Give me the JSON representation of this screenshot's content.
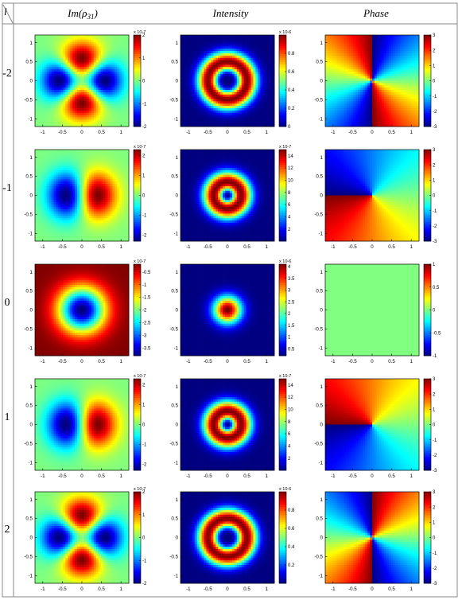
{
  "table": {
    "corner_label": "l",
    "columns": [
      {
        "key": "im",
        "prefix": "Im(",
        "symbol": "ρ",
        "subscript": "31",
        "suffix": ")"
      },
      {
        "key": "int",
        "label": "Intensity"
      },
      {
        "key": "ph",
        "label": "Phase"
      }
    ],
    "row_labels": [
      "-2",
      "-1",
      "0",
      "1",
      "2"
    ]
  },
  "chart_data": [
    {
      "type": "heatmap",
      "l": -2,
      "quantity": "Im(ρ31)",
      "xlim": [
        -1.2,
        1.2
      ],
      "ylim": [
        -1.2,
        1.2
      ],
      "xticks": [
        "-1",
        "-0.5",
        "0",
        "0.5",
        "1"
      ],
      "yticks": [
        "1",
        "0.5",
        "0",
        "-0.5",
        "-1"
      ],
      "colorbar": {
        "range": [
          -2,
          2
        ],
        "ticks": [
          "2",
          "1",
          "0",
          "-1",
          "-2"
        ],
        "exponent": "x 10-7"
      }
    },
    {
      "type": "heatmap",
      "l": -2,
      "quantity": "Intensity",
      "xlim": [
        -1.2,
        1.2
      ],
      "ylim": [
        -1.2,
        1.2
      ],
      "xticks": [
        "-1",
        "-0.5",
        "0",
        "0.5",
        "1"
      ],
      "yticks": [
        "1",
        "0.5",
        "0",
        "-0.5",
        "-1"
      ],
      "colorbar": {
        "range": [
          0,
          1
        ],
        "ticks": [
          "0.8",
          "0.6",
          "0.4",
          "0.2",
          "0"
        ],
        "exponent": "x 10-6"
      }
    },
    {
      "type": "heatmap",
      "l": -2,
      "quantity": "Phase",
      "xlim": [
        -1.2,
        1.2
      ],
      "ylim": [
        -1.2,
        1.2
      ],
      "xticks": [
        "-1",
        "-0.5",
        "0",
        "0.5",
        "1"
      ],
      "yticks": [
        "1",
        "0.5",
        "0",
        "-0.5",
        "-1"
      ],
      "colorbar": {
        "range": [
          -3,
          3
        ],
        "ticks": [
          "3",
          "2",
          "1",
          "0",
          "-1",
          "-2",
          "-3"
        ],
        "exponent": ""
      }
    },
    {
      "type": "heatmap",
      "l": -1,
      "quantity": "Im(ρ31)",
      "xlim": [
        -1.2,
        1.2
      ],
      "ylim": [
        -1.2,
        1.2
      ],
      "xticks": [
        "-1",
        "-0.5",
        "0",
        "0.5",
        "1"
      ],
      "yticks": [
        "1",
        "0.5",
        "0",
        "-0.5",
        "-1"
      ],
      "colorbar": {
        "range": [
          -2.3,
          2.3
        ],
        "ticks": [
          "2",
          "1",
          "0",
          "-1",
          "-2"
        ],
        "exponent": "x 10-7"
      }
    },
    {
      "type": "heatmap",
      "l": -1,
      "quantity": "Intensity",
      "xlim": [
        -1.2,
        1.2
      ],
      "ylim": [
        -1.2,
        1.2
      ],
      "xticks": [
        "-1",
        "-0.5",
        "0",
        "0.5",
        "1"
      ],
      "yticks": [
        "1",
        "0.5",
        "0",
        "-0.5",
        "-1"
      ],
      "colorbar": {
        "range": [
          0,
          15
        ],
        "ticks": [
          "14",
          "12",
          "10",
          "8",
          "6",
          "4",
          "2"
        ],
        "exponent": "x 10-7"
      }
    },
    {
      "type": "heatmap",
      "l": -1,
      "quantity": "Phase",
      "xlim": [
        -1.2,
        1.2
      ],
      "ylim": [
        -1.2,
        1.2
      ],
      "xticks": [
        "-1",
        "-0.5",
        "0",
        "0.5",
        "1"
      ],
      "yticks": [
        "1",
        "0.5",
        "0",
        "-0.5",
        "-1"
      ],
      "colorbar": {
        "range": [
          -3,
          3
        ],
        "ticks": [
          "3",
          "2",
          "1",
          "0",
          "-1",
          "-2",
          "-3"
        ],
        "exponent": ""
      }
    },
    {
      "type": "heatmap",
      "l": 0,
      "quantity": "Im(ρ31)",
      "xlim": [
        -1.2,
        1.2
      ],
      "ylim": [
        -1.2,
        1.2
      ],
      "xticks": [
        "-1",
        "-0.5",
        "0",
        "0.5",
        "1"
      ],
      "yticks": [
        "1",
        "0.5",
        "0",
        "-0.5",
        "-1"
      ],
      "colorbar": {
        "range": [
          -3.8,
          -0.2
        ],
        "ticks": [
          "-0.5",
          "-1",
          "-1.5",
          "-2",
          "-2.5",
          "-3",
          "-3.5"
        ],
        "exponent": "x 10-7"
      }
    },
    {
      "type": "heatmap",
      "l": 0,
      "quantity": "Intensity",
      "xlim": [
        -1.2,
        1.2
      ],
      "ylim": [
        -1.2,
        1.2
      ],
      "xticks": [
        "-1",
        "-0.5",
        "0",
        "0.5",
        "1"
      ],
      "yticks": [
        "1",
        "0.5",
        "0",
        "-0.5",
        "-1"
      ],
      "colorbar": {
        "range": [
          0.2,
          4.1
        ],
        "ticks": [
          "4",
          "3.5",
          "3",
          "2.5",
          "2",
          "1.5",
          "1",
          "0.5"
        ],
        "exponent": "x 10-6"
      }
    },
    {
      "type": "heatmap",
      "l": 0,
      "quantity": "Phase",
      "xlim": [
        -1.2,
        1.2
      ],
      "ylim": [
        -1.2,
        1.2
      ],
      "xticks": [
        "-1",
        "-0.5",
        "0",
        "0.5",
        "1"
      ],
      "yticks": [
        "1",
        "0.5",
        "0",
        "-0.5",
        "-1"
      ],
      "colorbar": {
        "range": [
          -1,
          1
        ],
        "ticks": [
          "1",
          "0.5",
          "0",
          "-0.5",
          "-1"
        ],
        "exponent": ""
      }
    },
    {
      "type": "heatmap",
      "l": 1,
      "quantity": "Im(ρ31)",
      "xlim": [
        -1.2,
        1.2
      ],
      "ylim": [
        -1.2,
        1.2
      ],
      "xticks": [
        "-1",
        "-0.5",
        "0",
        "0.5",
        "1"
      ],
      "yticks": [
        "1",
        "0.5",
        "0",
        "-0.5",
        "-1"
      ],
      "colorbar": {
        "range": [
          -2.3,
          2.3
        ],
        "ticks": [
          "2",
          "1",
          "0",
          "-1",
          "-2"
        ],
        "exponent": "x 10-7"
      }
    },
    {
      "type": "heatmap",
      "l": 1,
      "quantity": "Intensity",
      "xlim": [
        -1.2,
        1.2
      ],
      "ylim": [
        -1.2,
        1.2
      ],
      "xticks": [
        "-1",
        "-0.5",
        "0",
        "0.5",
        "1"
      ],
      "yticks": [
        "1",
        "0.5",
        "0",
        "-0.5",
        "-1"
      ],
      "colorbar": {
        "range": [
          0,
          15
        ],
        "ticks": [
          "14",
          "12",
          "10",
          "8",
          "6",
          "4",
          "2"
        ],
        "exponent": "x 10-7"
      }
    },
    {
      "type": "heatmap",
      "l": 1,
      "quantity": "Phase",
      "xlim": [
        -1.2,
        1.2
      ],
      "ylim": [
        -1.2,
        1.2
      ],
      "xticks": [
        "-1",
        "-0.5",
        "0",
        "0.5",
        "1"
      ],
      "yticks": [
        "1",
        "0.5",
        "0",
        "-0.5",
        "-1"
      ],
      "colorbar": {
        "range": [
          -3,
          3
        ],
        "ticks": [
          "3",
          "2",
          "1",
          "0",
          "-1",
          "-2",
          "-3"
        ],
        "exponent": ""
      }
    },
    {
      "type": "heatmap",
      "l": 2,
      "quantity": "Im(ρ31)",
      "xlim": [
        -1.2,
        1.2
      ],
      "ylim": [
        -1.2,
        1.2
      ],
      "xticks": [
        "-1",
        "-0.5",
        "0",
        "0.5",
        "1"
      ],
      "yticks": [
        "1",
        "0.5",
        "0",
        "-0.5",
        "-1"
      ],
      "colorbar": {
        "range": [
          -2,
          2
        ],
        "ticks": [
          "2",
          "1",
          "0",
          "-1",
          "-2"
        ],
        "exponent": "x 10-7"
      }
    },
    {
      "type": "heatmap",
      "l": 2,
      "quantity": "Intensity",
      "xlim": [
        -1.2,
        1.2
      ],
      "ylim": [
        -1.2,
        1.2
      ],
      "xticks": [
        "-1",
        "-0.5",
        "0",
        "0.5",
        "1"
      ],
      "yticks": [
        "1",
        "0.5",
        "0",
        "-0.5",
        "-1"
      ],
      "colorbar": {
        "range": [
          0,
          1
        ],
        "ticks": [
          "0.8",
          "0.6",
          "0.4",
          "0.2"
        ],
        "exponent": "x 10-6"
      }
    },
    {
      "type": "heatmap",
      "l": 2,
      "quantity": "Phase",
      "xlim": [
        -1.2,
        1.2
      ],
      "ylim": [
        -1.2,
        1.2
      ],
      "xticks": [
        "-1",
        "-0.5",
        "0",
        "0.5",
        "1"
      ],
      "yticks": [
        "1",
        "0.5",
        "0",
        "-0.5",
        "-1"
      ],
      "colorbar": {
        "range": [
          -3,
          3
        ],
        "ticks": [
          "3",
          "2",
          "1",
          "0",
          "-1",
          "-2",
          "-3"
        ],
        "exponent": ""
      }
    }
  ]
}
